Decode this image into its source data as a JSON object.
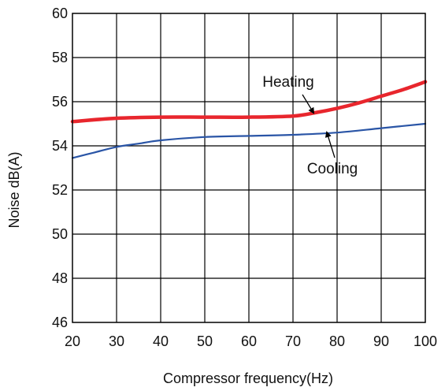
{
  "chart_data": {
    "type": "line",
    "title": "",
    "xlabel": "Compressor frequency(Hz)",
    "ylabel": "Noise dB(A)",
    "xlim": [
      20,
      100
    ],
    "ylim": [
      46,
      60
    ],
    "xticks": [
      "20",
      "30",
      "40",
      "50",
      "60",
      "70",
      "80",
      "90",
      "100"
    ],
    "yticks": [
      "46",
      "48",
      "50",
      "52",
      "54",
      "56",
      "58",
      "60"
    ],
    "grid": true,
    "legend": "none",
    "series": [
      {
        "name": "Heating",
        "color": "#e8262d",
        "x": [
          20,
          30,
          40,
          50,
          60,
          70,
          75,
          80,
          85,
          90,
          95,
          100
        ],
        "y": [
          55.1,
          55.25,
          55.3,
          55.3,
          55.3,
          55.35,
          55.5,
          55.7,
          55.95,
          56.25,
          56.55,
          56.9
        ]
      },
      {
        "name": "Cooling",
        "color": "#2a55a6",
        "x": [
          20,
          25,
          30,
          35,
          40,
          50,
          60,
          70,
          80,
          90,
          100
        ],
        "y": [
          53.45,
          53.7,
          53.95,
          54.1,
          54.25,
          54.4,
          54.45,
          54.5,
          54.6,
          54.8,
          55.0
        ]
      }
    ],
    "annotations": [
      {
        "text": "Heating",
        "series": "Heating",
        "x": 76,
        "y": 55.5
      },
      {
        "text": "Cooling",
        "series": "Cooling",
        "x": 79,
        "y": 54.55
      }
    ]
  }
}
